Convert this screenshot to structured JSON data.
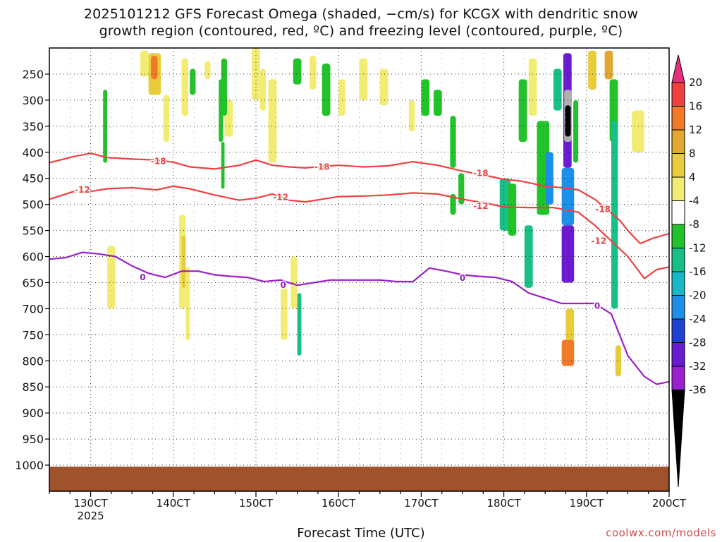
{
  "title_line1": "2025101212 GFS Forecast Omega (shaded, −cm/s) for KCGX with dendritic snow",
  "title_line2": "growth region (contoured, red, ºC) and freezing level (contoured, purple, ºC)",
  "credit": "coolwx.com/models",
  "colors": {
    "dgz": "#ef4040",
    "freezing": "#9b1fc7",
    "ground": "#a0522d"
  },
  "chart_data": {
    "type": "heatmap",
    "xlabel": "Forecast Time (UTC)",
    "x_unit": "day of October 2025",
    "xlim": [
      12.5,
      20
    ],
    "x_ticks": [
      {
        "value": 13,
        "label": "130CT"
      },
      {
        "value": 14,
        "label": "140CT"
      },
      {
        "value": 15,
        "label": "150CT"
      },
      {
        "value": 16,
        "label": "160CT"
      },
      {
        "value": 17,
        "label": "170CT"
      },
      {
        "value": 18,
        "label": "180CT"
      },
      {
        "value": 19,
        "label": "190CT"
      },
      {
        "value": 20,
        "label": "200CT"
      }
    ],
    "x_sublabel": "2025",
    "ylabel": "",
    "y_unit": "hPa",
    "ylim": [
      1050,
      200
    ],
    "y_ticks": [
      250,
      300,
      350,
      400,
      450,
      500,
      550,
      600,
      650,
      700,
      750,
      800,
      850,
      900,
      950,
      1000
    ],
    "grid": true,
    "colorbar": {
      "labels": [
        "20",
        "16",
        "12",
        "8",
        "4",
        "-4",
        "-8",
        "-12",
        "-16",
        "-20",
        "-24",
        "-28",
        "-32",
        "-36"
      ],
      "boundaries": [
        20,
        16,
        12,
        8,
        4,
        -4,
        -8,
        -12,
        -16,
        -20,
        -24,
        -28,
        -32,
        -36
      ],
      "colors": [
        "#ef4040",
        "#f07a28",
        "#e0a830",
        "#e8cc3a",
        "#f2ec72",
        "#ffffff",
        "#21c22a",
        "#18c088",
        "#18b8c8",
        "#1c90e8",
        "#2040d0",
        "#6a1ad0",
        "#9a20d0",
        "#b0b0b0"
      ],
      "top_color": "#e8307a",
      "bottom_color": "#000000"
    },
    "surface_pressure_hpa": 1003,
    "contours": [
      {
        "label": "-18",
        "color": "#ef4040",
        "x": [
          12.5,
          12.8,
          13.0,
          13.2,
          13.5,
          13.8,
          14.0,
          14.2,
          14.5,
          14.8,
          15.0,
          15.2,
          15.4,
          15.6,
          15.8,
          16.0,
          16.3,
          16.6,
          16.9,
          17.2,
          17.5,
          17.8,
          18.0,
          18.2,
          18.5,
          18.7,
          18.9,
          19.1,
          19.25,
          19.4,
          19.5
        ],
        "y": [
          420,
          408,
          402,
          410,
          413,
          415,
          419,
          428,
          432,
          425,
          415,
          425,
          428,
          430,
          427,
          425,
          428,
          426,
          418,
          425,
          436,
          445,
          452,
          455,
          465,
          468,
          472,
          490,
          510,
          530,
          550
        ]
      },
      {
        "label": "-18",
        "color": "#ef4040",
        "x": [
          19.5,
          19.65,
          19.8,
          20.0
        ],
        "y": [
          550,
          575,
          565,
          556
        ]
      },
      {
        "label": "-12",
        "color": "#ef4040",
        "x": [
          12.5,
          12.8,
          13.0,
          13.2,
          13.5,
          13.8,
          14.0,
          14.2,
          14.5,
          14.8,
          15.0,
          15.2,
          15.4,
          15.6,
          15.8,
          16.0,
          16.3,
          16.6,
          16.9,
          17.2,
          17.5,
          17.8,
          18.0,
          18.3,
          18.6,
          18.9,
          19.1,
          19.3,
          19.5
        ],
        "y": [
          490,
          475,
          475,
          470,
          468,
          472,
          465,
          470,
          482,
          492,
          488,
          480,
          492,
          495,
          490,
          485,
          484,
          482,
          478,
          480,
          490,
          498,
          505,
          506,
          506,
          515,
          540,
          570,
          600
        ]
      },
      {
        "label": "-12",
        "color": "#ef4040",
        "x": [
          19.5,
          19.7,
          19.85,
          20.0
        ],
        "y": [
          600,
          642,
          625,
          620
        ]
      },
      {
        "label": "0",
        "color": "#9b1fc7",
        "x": [
          12.5,
          12.7,
          12.9,
          13.1,
          13.3,
          13.5,
          13.7,
          13.9,
          14.1,
          14.3,
          14.5,
          14.7,
          14.9,
          15.1,
          15.3,
          15.5,
          15.7,
          15.9,
          16.1,
          16.3,
          16.5,
          16.7,
          16.9,
          17.1,
          17.3,
          17.5,
          17.7,
          17.9,
          18.1,
          18.3,
          18.5,
          18.7,
          18.9,
          19.1,
          19.3,
          19.5,
          19.7,
          19.85,
          20.0
        ],
        "y": [
          605,
          602,
          592,
          595,
          600,
          618,
          632,
          640,
          628,
          628,
          635,
          638,
          640,
          648,
          645,
          655,
          650,
          645,
          645,
          645,
          645,
          648,
          648,
          622,
          628,
          635,
          638,
          640,
          648,
          670,
          680,
          690,
          690,
          690,
          710,
          790,
          830,
          845,
          840
        ]
      }
    ],
    "label_positions": [
      {
        "text": "-18",
        "x": 13.82,
        "y": 417,
        "color": "#ef4040"
      },
      {
        "text": "-18",
        "x": 15.8,
        "y": 428,
        "color": "#ef4040"
      },
      {
        "text": "-18",
        "x": 17.72,
        "y": 440,
        "color": "#ef4040"
      },
      {
        "text": "-18",
        "x": 19.2,
        "y": 509,
        "color": "#ef4040"
      },
      {
        "text": "-12",
        "x": 12.9,
        "y": 472,
        "color": "#ef4040"
      },
      {
        "text": "-12",
        "x": 15.3,
        "y": 486,
        "color": "#ef4040"
      },
      {
        "text": "-12",
        "x": 17.72,
        "y": 503,
        "color": "#ef4040"
      },
      {
        "text": "-12",
        "x": 19.15,
        "y": 570,
        "color": "#ef4040"
      },
      {
        "text": "0",
        "x": 13.63,
        "y": 640,
        "color": "#9b1fc7"
      },
      {
        "text": "0",
        "x": 15.33,
        "y": 655,
        "color": "#9b1fc7"
      },
      {
        "text": "0",
        "x": 17.5,
        "y": 641,
        "color": "#9b1fc7"
      },
      {
        "text": "0",
        "x": 19.13,
        "y": 695,
        "color": "#9b1fc7"
      }
    ],
    "omega_shaded_regions": [
      {
        "x": [
          13.7,
          13.85
        ],
        "p": [
          210,
          290
        ],
        "value": 8
      },
      {
        "x": [
          13.73,
          13.81
        ],
        "p": [
          215,
          260
        ],
        "value": 16
      },
      {
        "x": [
          13.75,
          13.78
        ],
        "p": [
          218,
          240
        ],
        "value": 20
      },
      {
        "x": [
          13.6,
          13.7
        ],
        "p": [
          205,
          255
        ],
        "value": 4
      },
      {
        "x": [
          13.88,
          13.95
        ],
        "p": [
          290,
          380
        ],
        "value": 4
      },
      {
        "x": [
          14.1,
          14.18
        ],
        "p": [
          220,
          330
        ],
        "value": 4
      },
      {
        "x": [
          14.2,
          14.27
        ],
        "p": [
          240,
          290
        ],
        "value": -8
      },
      {
        "x": [
          14.38,
          14.45
        ],
        "p": [
          225,
          260
        ],
        "value": 4
      },
      {
        "x": [
          14.62,
          14.72
        ],
        "p": [
          300,
          370
        ],
        "value": 4
      },
      {
        "x": [
          14.58,
          14.65
        ],
        "p": [
          220,
          330
        ],
        "value": -8
      },
      {
        "x": [
          14.95,
          15.05
        ],
        "p": [
          200,
          300
        ],
        "value": 4
      },
      {
        "x": [
          15.05,
          15.12
        ],
        "p": [
          240,
          320
        ],
        "value": 4
      },
      {
        "x": [
          15.15,
          15.25
        ],
        "p": [
          260,
          420
        ],
        "value": 4
      },
      {
        "x": [
          15.45,
          15.55
        ],
        "p": [
          220,
          270
        ],
        "value": -8
      },
      {
        "x": [
          15.65,
          15.73
        ],
        "p": [
          215,
          280
        ],
        "value": 4
      },
      {
        "x": [
          15.8,
          15.9
        ],
        "p": [
          230,
          330
        ],
        "value": -8
      },
      {
        "x": [
          16.0,
          16.08
        ],
        "p": [
          260,
          330
        ],
        "value": 4
      },
      {
        "x": [
          16.25,
          16.35
        ],
        "p": [
          220,
          300
        ],
        "value": 4
      },
      {
        "x": [
          16.5,
          16.6
        ],
        "p": [
          240,
          310
        ],
        "value": 4
      },
      {
        "x": [
          16.85,
          16.92
        ],
        "p": [
          300,
          360
        ],
        "value": 4
      },
      {
        "x": [
          17.0,
          17.1
        ],
        "p": [
          260,
          330
        ],
        "value": -8
      },
      {
        "x": [
          17.15,
          17.25
        ],
        "p": [
          280,
          330
        ],
        "value": -8
      },
      {
        "x": [
          17.35,
          17.42
        ],
        "p": [
          330,
          430
        ],
        "value": -8
      },
      {
        "x": [
          17.45,
          17.52
        ],
        "p": [
          440,
          500
        ],
        "value": -8
      },
      {
        "x": [
          13.2,
          13.3
        ],
        "p": [
          580,
          700
        ],
        "value": 4
      },
      {
        "x": [
          13.15,
          13.2
        ],
        "p": [
          280,
          420
        ],
        "value": -8
      },
      {
        "x": [
          14.07,
          14.15
        ],
        "p": [
          520,
          700
        ],
        "value": 4
      },
      {
        "x": [
          14.1,
          14.15
        ],
        "p": [
          560,
          660
        ],
        "value": 8
      },
      {
        "x": [
          14.15,
          14.2
        ],
        "p": [
          620,
          760
        ],
        "value": 4
      },
      {
        "x": [
          14.55,
          14.6
        ],
        "p": [
          260,
          380
        ],
        "value": -8
      },
      {
        "x": [
          14.58,
          14.62
        ],
        "p": [
          380,
          470
        ],
        "value": -8
      },
      {
        "x": [
          15.3,
          15.38
        ],
        "p": [
          660,
          760
        ],
        "value": 4
      },
      {
        "x": [
          15.5,
          15.55
        ],
        "p": [
          670,
          790
        ],
        "value": -12
      },
      {
        "x": [
          15.42,
          15.5
        ],
        "p": [
          600,
          700
        ],
        "value": 4
      },
      {
        "x": [
          17.35,
          17.42
        ],
        "p": [
          480,
          520
        ],
        "value": -8
      },
      {
        "x": [
          17.95,
          18.08
        ],
        "p": [
          450,
          550
        ],
        "value": -12
      },
      {
        "x": [
          18.05,
          18.15
        ],
        "p": [
          460,
          560
        ],
        "value": -8
      },
      {
        "x": [
          18.18,
          18.28
        ],
        "p": [
          260,
          380
        ],
        "value": -8
      },
      {
        "x": [
          18.3,
          18.4
        ],
        "p": [
          220,
          330
        ],
        "value": 4
      },
      {
        "x": [
          18.25,
          18.35
        ],
        "p": [
          540,
          660
        ],
        "value": -12
      },
      {
        "x": [
          18.4,
          18.55
        ],
        "p": [
          340,
          520
        ],
        "value": -8
      },
      {
        "x": [
          18.5,
          18.6
        ],
        "p": [
          400,
          500
        ],
        "value": -20
      },
      {
        "x": [
          18.6,
          18.7
        ],
        "p": [
          240,
          320
        ],
        "value": -12
      },
      {
        "x": [
          18.72,
          18.82
        ],
        "p": [
          210,
          430
        ],
        "value": -28
      },
      {
        "x": [
          18.7,
          18.85
        ],
        "p": [
          430,
          540
        ],
        "value": -20
      },
      {
        "x": [
          18.7,
          18.85
        ],
        "p": [
          540,
          650
        ],
        "value": -28
      },
      {
        "x": [
          18.73,
          18.82
        ],
        "p": [
          280,
          380
        ],
        "value": -36
      },
      {
        "x": [
          18.74,
          18.81
        ],
        "p": [
          310,
          370
        ],
        "value": -40
      },
      {
        "x": [
          18.84,
          18.9
        ],
        "p": [
          300,
          420
        ],
        "value": -8
      },
      {
        "x": [
          18.75,
          18.85
        ],
        "p": [
          700,
          800
        ],
        "value": 8
      },
      {
        "x": [
          18.7,
          18.85
        ],
        "p": [
          760,
          810
        ],
        "value": 16
      },
      {
        "x": [
          19.02,
          19.12
        ],
        "p": [
          205,
          280
        ],
        "value": 8
      },
      {
        "x": [
          19.22,
          19.32
        ],
        "p": [
          205,
          260
        ],
        "value": 12
      },
      {
        "x": [
          19.28,
          19.38
        ],
        "p": [
          260,
          380
        ],
        "value": -8
      },
      {
        "x": [
          19.3,
          19.38
        ],
        "p": [
          340,
          700
        ],
        "value": -12
      },
      {
        "x": [
          19.35,
          19.42
        ],
        "p": [
          770,
          830
        ],
        "value": 8
      },
      {
        "x": [
          19.55,
          19.7
        ],
        "p": [
          320,
          400
        ],
        "value": 4
      }
    ]
  }
}
